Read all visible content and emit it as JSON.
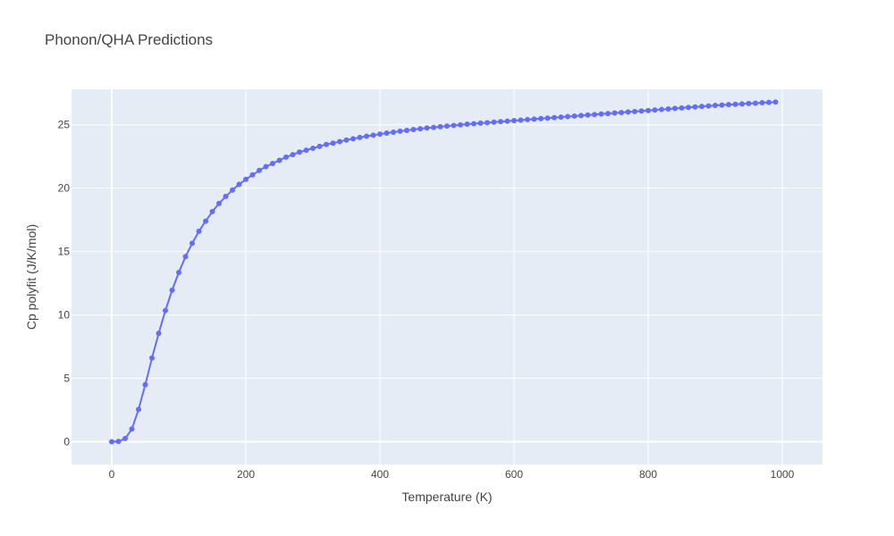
{
  "chart_data": {
    "type": "line",
    "title": "Phonon/QHA Predictions",
    "xlabel": "Temperature (K)",
    "ylabel": "Cp polyfit (J/K/mol)",
    "xlim": [
      -60,
      1060
    ],
    "ylim": [
      -1.8,
      27.8
    ],
    "xticks": [
      0,
      200,
      400,
      600,
      800,
      1000
    ],
    "xtick_labels": [
      "0",
      "200",
      "400",
      "600",
      "800",
      "1000"
    ],
    "yticks": [
      0,
      5,
      10,
      15,
      20,
      25
    ],
    "ytick_labels": [
      "0",
      "5",
      "10",
      "15",
      "20",
      "25"
    ],
    "grid": true,
    "series": [
      {
        "mode": "lines+markers",
        "color": "#636efa",
        "x": [
          0,
          10,
          20,
          30,
          40,
          50,
          60,
          70,
          80,
          90,
          100,
          110,
          120,
          130,
          140,
          150,
          160,
          170,
          180,
          190,
          200,
          210,
          220,
          230,
          240,
          250,
          260,
          270,
          280,
          290,
          300,
          310,
          320,
          330,
          340,
          350,
          360,
          370,
          380,
          390,
          400,
          410,
          420,
          430,
          440,
          450,
          460,
          470,
          480,
          490,
          500,
          510,
          520,
          530,
          540,
          550,
          560,
          570,
          580,
          590,
          600,
          610,
          620,
          630,
          640,
          650,
          660,
          670,
          680,
          690,
          700,
          710,
          720,
          730,
          740,
          750,
          760,
          770,
          780,
          790,
          800,
          810,
          820,
          830,
          840,
          850,
          860,
          870,
          880,
          890,
          900,
          910,
          920,
          930,
          940,
          950,
          960,
          970,
          980,
          990
        ],
        "y": [
          0.0,
          0.02,
          0.25,
          1.0,
          2.55,
          4.5,
          6.6,
          8.55,
          10.35,
          11.95,
          13.35,
          14.6,
          15.65,
          16.6,
          17.4,
          18.15,
          18.8,
          19.35,
          19.85,
          20.3,
          20.7,
          21.05,
          21.4,
          21.7,
          21.95,
          22.2,
          22.45,
          22.65,
          22.85,
          23.0,
          23.15,
          23.3,
          23.45,
          23.55,
          23.68,
          23.8,
          23.9,
          24.0,
          24.1,
          24.18,
          24.27,
          24.35,
          24.42,
          24.5,
          24.56,
          24.63,
          24.69,
          24.75,
          24.8,
          24.85,
          24.9,
          24.95,
          25.0,
          25.05,
          25.09,
          25.13,
          25.17,
          25.21,
          25.25,
          25.29,
          25.33,
          25.37,
          25.41,
          25.45,
          25.49,
          25.53,
          25.57,
          25.61,
          25.65,
          25.69,
          25.73,
          25.77,
          25.81,
          25.85,
          25.89,
          25.93,
          25.97,
          26.01,
          26.05,
          26.09,
          26.13,
          26.17,
          26.21,
          26.25,
          26.29,
          26.33,
          26.37,
          26.41,
          26.45,
          26.49,
          26.53,
          26.56,
          26.59,
          26.62,
          26.65,
          26.68,
          26.71,
          26.74,
          26.77,
          26.8
        ]
      }
    ]
  }
}
